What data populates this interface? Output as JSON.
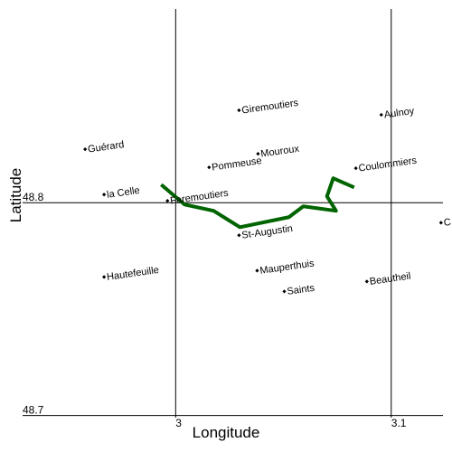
{
  "chart_data": {
    "type": "scatter",
    "x_label": "Longitude",
    "y_label": "Latitude",
    "xlim": [
      2.929,
      3.124
    ],
    "ylim": [
      48.699,
      48.891
    ],
    "xticks": [
      3,
      3.1
    ],
    "yticks": [
      48.7,
      48.8
    ],
    "grid": true,
    "points": {
      "color": "#000000",
      "labels": [
        "Giremoutiers",
        "Aulnoy",
        "Guérard",
        "Mouroux",
        "Pommeuse",
        "Coulommiers",
        "la Celle",
        "Faremoutiers",
        "C",
        "St-Augustin",
        "Hautefeuille",
        "Mauperthuis",
        "Beautheil",
        "Saints"
      ],
      "x": [
        3.0294,
        3.0954,
        2.958,
        3.0382,
        3.0155,
        3.0836,
        2.9668,
        2.9962,
        3.1231,
        3.0294,
        2.9668,
        3.0378,
        3.0887,
        3.0504
      ],
      "y": [
        48.8434,
        48.8413,
        48.8251,
        48.823,
        48.8166,
        48.8162,
        48.8038,
        48.8009,
        48.7906,
        48.7847,
        48.7651,
        48.7681,
        48.763,
        48.7583
      ]
    },
    "line": {
      "color": "#006400",
      "x": [
        2.9933,
        3.0042,
        3.0176,
        3.0298,
        3.0525,
        3.0592,
        3.0744,
        3.0702,
        3.0731,
        3.0828
      ],
      "y": [
        48.8085,
        48.7991,
        48.7962,
        48.7885,
        48.7932,
        48.7983,
        48.7962,
        48.803,
        48.8115,
        48.8072
      ]
    }
  }
}
